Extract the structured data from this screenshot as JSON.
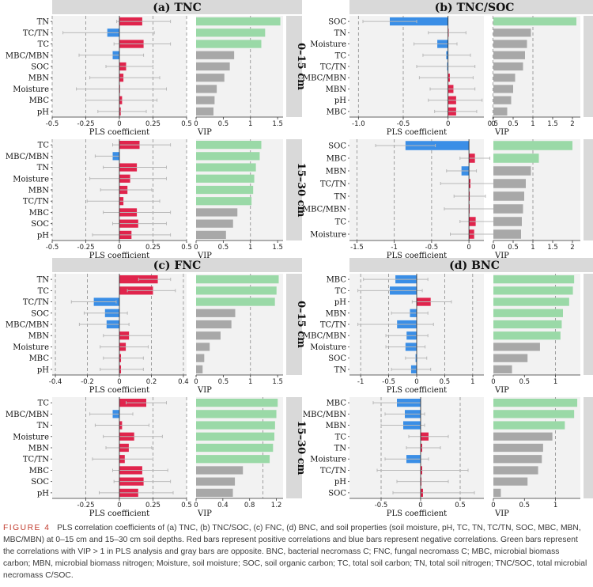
{
  "colors": {
    "positive": "#e0244c",
    "negative": "#3a8ee6",
    "vip_high": "#9ad9a7",
    "vip_low": "#a8a8a8",
    "strip": "#d9d9d9",
    "panel_bg": "#f2f2f2",
    "errorbar": "#b8b8b8"
  },
  "caption": {
    "label": "FIGURE 4",
    "text": "PLS correlation coefficients of (a) TNC, (b) TNC/SOC, (c) FNC, (d) BNC, and soil properties (soil moisture, pH, TC, TN, TC/TN, SOC, MBC, MBN, MBC/MBN) at 0–15 cm and 15–30 cm soil depths. Red bars represent positive correlations and blue bars represent negative correlations. Green bars represent the correlations with VIP > 1 in PLS analysis and gray bars are opposite. BNC, bacterial necromass C; FNC, fungal necromass C; MBC, microbial biomass carbon; MBN, microbial biomass nitrogen; Moisture, soil moisture; SOC, soil organic carbon; TC, total soil carbon; TN, total soil nitrogen; TNC/SOC, total microbial necromass C/SOC."
  },
  "chart_data": [
    {
      "type": "bar",
      "title": "(a) TNC",
      "xlabel": "PLS coefficient",
      "vip_xlabel": "VIP",
      "coef_xlim": [
        -0.5,
        0.5
      ],
      "coef_ticks": [
        -0.5,
        -0.25,
        0,
        0.25,
        0.5
      ],
      "coef_tick_labels": [
        "-0.5",
        "-0.25",
        "0",
        "0.25",
        "0.5"
      ],
      "vip_xlim": [
        0,
        1.6
      ],
      "vip_ticks": [
        0,
        0.5,
        1,
        1.5
      ],
      "vip_tick_labels": [
        "0",
        "0.5",
        "1",
        "1.5"
      ],
      "depths": [
        {
          "label": "0–15 cm",
          "rows": [
            {
              "name": "TN",
              "coef": 0.17,
              "lo": -0.02,
              "hi": 0.38,
              "vip": 1.55
            },
            {
              "name": "TC/TN",
              "coef": -0.09,
              "lo": -0.42,
              "hi": 0.26,
              "vip": 1.27
            },
            {
              "name": "TC",
              "coef": 0.18,
              "lo": -0.04,
              "hi": 0.38,
              "vip": 1.2
            },
            {
              "name": "MBC/MBN",
              "coef": -0.05,
              "lo": -0.3,
              "hi": 0.18,
              "vip": 0.7
            },
            {
              "name": "SOC",
              "coef": 0.05,
              "lo": -0.1,
              "hi": 0.25,
              "vip": 0.62
            },
            {
              "name": "MBN",
              "coef": 0.03,
              "lo": -0.22,
              "hi": 0.3,
              "vip": 0.52
            },
            {
              "name": "Moisture",
              "coef": 0.0,
              "lo": -0.32,
              "hi": 0.35,
              "vip": 0.38
            },
            {
              "name": "MBC",
              "coef": 0.02,
              "lo": -0.25,
              "hi": 0.28,
              "vip": 0.34
            },
            {
              "name": "pH",
              "coef": 0.01,
              "lo": -0.16,
              "hi": 0.2,
              "vip": 0.32
            }
          ]
        },
        {
          "label": "15–30 cm",
          "rows": [
            {
              "name": "TC",
              "coef": 0.15,
              "lo": -0.05,
              "hi": 0.38,
              "vip": 1.2
            },
            {
              "name": "MBC/MBN",
              "coef": -0.05,
              "lo": -0.18,
              "hi": 0.0,
              "vip": 1.17
            },
            {
              "name": "TN",
              "coef": 0.13,
              "lo": -0.12,
              "hi": 0.35,
              "vip": 1.1
            },
            {
              "name": "Moisture",
              "coef": 0.08,
              "lo": -0.22,
              "hi": 0.35,
              "vip": 1.07
            },
            {
              "name": "MBN",
              "coef": 0.06,
              "lo": -0.14,
              "hi": 0.24,
              "vip": 1.05
            },
            {
              "name": "TC/TN",
              "coef": 0.03,
              "lo": -0.24,
              "hi": 0.3,
              "vip": 1.02
            },
            {
              "name": "MBC",
              "coef": 0.13,
              "lo": -0.12,
              "hi": 0.38,
              "vip": 0.76
            },
            {
              "name": "SOC",
              "coef": 0.14,
              "lo": -0.05,
              "hi": 0.35,
              "vip": 0.68
            },
            {
              "name": "pH",
              "coef": 0.09,
              "lo": -0.2,
              "hi": 0.38,
              "vip": 0.55
            }
          ]
        }
      ]
    },
    {
      "type": "bar",
      "title": "(b) TNC/SOC",
      "xlabel": "PLS coefficient",
      "vip_xlabel": "VIP",
      "coef_xlim": [
        -1.1,
        0.4
      ],
      "coef_ticks": [
        -1.0,
        -0.5,
        0,
        0.5
      ],
      "coef_tick_labels": [
        "-1.0",
        "-0.5",
        "0",
        "0.5"
      ],
      "coef_xlim_2": [
        -1.6,
        0.2
      ],
      "coef_ticks_2": [
        -1.5,
        -1,
        -0.5,
        0
      ],
      "coef_tick_labels_2": [
        "-1.5",
        "-1",
        "-0.5",
        "0"
      ],
      "vip_xlim": [
        0,
        2.2
      ],
      "vip_ticks": [
        0,
        0.5,
        1,
        1.5,
        2
      ],
      "vip_tick_labels": [
        "0",
        "0.5",
        "1",
        "1.5",
        "2"
      ],
      "depths": [
        {
          "label": "0–15 cm",
          "rows": [
            {
              "name": "SOC",
              "coef": -0.65,
              "lo": -0.95,
              "hi": -0.35,
              "vip": 2.1
            },
            {
              "name": "TN",
              "coef": 0.0,
              "lo": -0.22,
              "hi": 0.2,
              "vip": 0.95
            },
            {
              "name": "Moisture",
              "coef": -0.12,
              "lo": -0.38,
              "hi": 0.1,
              "vip": 0.85
            },
            {
              "name": "TC",
              "coef": -0.02,
              "lo": -0.28,
              "hi": 0.25,
              "vip": 0.8
            },
            {
              "name": "TC/TN",
              "coef": -0.01,
              "lo": -0.35,
              "hi": 0.3,
              "vip": 0.75
            },
            {
              "name": "MBC/MBN",
              "coef": 0.02,
              "lo": -0.32,
              "hi": 0.28,
              "vip": 0.55
            },
            {
              "name": "MBN",
              "coef": 0.06,
              "lo": -0.2,
              "hi": 0.3,
              "vip": 0.5
            },
            {
              "name": "pH",
              "coef": 0.09,
              "lo": -0.22,
              "hi": 0.38,
              "vip": 0.45
            },
            {
              "name": "MBC",
              "coef": 0.09,
              "lo": -0.15,
              "hi": 0.32,
              "vip": 0.35
            }
          ]
        },
        {
          "label": "15–30 cm",
          "rows": [
            {
              "name": "SOC",
              "coef": -0.85,
              "lo": -1.25,
              "hi": -0.45,
              "vip": 2.0
            },
            {
              "name": "MBC",
              "coef": 0.08,
              "lo": -0.12,
              "hi": 0.28,
              "vip": 1.15
            },
            {
              "name": "MBN",
              "coef": -0.1,
              "lo": -0.3,
              "hi": 0.1,
              "vip": 0.95
            },
            {
              "name": "TC/TN",
              "coef": 0.02,
              "lo": -0.38,
              "hi": 0.4,
              "vip": 0.82
            },
            {
              "name": "TN",
              "coef": 0.01,
              "lo": -0.2,
              "hi": 0.22,
              "vip": 0.78
            },
            {
              "name": "MBC/MBN",
              "coef": 0.0,
              "lo": -0.33,
              "hi": 0.38,
              "vip": 0.75
            },
            {
              "name": "TC",
              "coef": 0.09,
              "lo": -0.12,
              "hi": 0.35,
              "vip": 0.72
            },
            {
              "name": "Moisture",
              "coef": 0.07,
              "lo": -0.25,
              "hi": 0.38,
              "vip": 0.7
            }
          ]
        }
      ]
    },
    {
      "type": "bar",
      "title": "(c) FNC",
      "xlabel": "PLS coefficient",
      "vip_xlabel": "VIP",
      "coef_xlim": [
        -0.42,
        0.42
      ],
      "coef_ticks": [
        -0.4,
        -0.2,
        0,
        0.2,
        0.4
      ],
      "coef_tick_labels": [
        "-0.4",
        "-0.2",
        "0",
        "0.2",
        "0.4"
      ],
      "coef_xlim_2": [
        -0.5,
        0.5
      ],
      "coef_ticks_2": [
        -0.25,
        0,
        0.25,
        0.5
      ],
      "coef_tick_labels_2": [
        "-0.25",
        "0",
        "0.25",
        "0.5"
      ],
      "vip_xlim": [
        0,
        1.6
      ],
      "vip_ticks": [
        0,
        0.5,
        1,
        1.5
      ],
      "vip_tick_labels": [
        "0",
        "0.5",
        "1",
        "1.5"
      ],
      "vip_xlim_2": [
        0,
        1.3
      ],
      "vip_ticks_2": [
        0,
        0.4,
        0.8,
        1.2
      ],
      "vip_tick_labels_2": [
        "0",
        "0.4",
        "0.8",
        "1.2"
      ],
      "depths": [
        {
          "label": "0–15 cm",
          "rows": [
            {
              "name": "TN",
              "coef": 0.24,
              "lo": 0.12,
              "hi": 0.32,
              "vip": 1.52
            },
            {
              "name": "TC",
              "coef": 0.21,
              "lo": 0.05,
              "hi": 0.35,
              "vip": 1.48
            },
            {
              "name": "TC/TN",
              "coef": -0.16,
              "lo": -0.3,
              "hi": -0.02,
              "vip": 1.45
            },
            {
              "name": "SOC",
              "coef": -0.09,
              "lo": -0.22,
              "hi": 0.05,
              "vip": 0.72
            },
            {
              "name": "MBC/MBN",
              "coef": -0.08,
              "lo": -0.25,
              "hi": 0.06,
              "vip": 0.65
            },
            {
              "name": "MBN",
              "coef": 0.06,
              "lo": -0.1,
              "hi": 0.2,
              "vip": 0.45
            },
            {
              "name": "Moisture",
              "coef": 0.04,
              "lo": -0.12,
              "hi": 0.18,
              "vip": 0.25
            },
            {
              "name": "MBC",
              "coef": 0.01,
              "lo": -0.1,
              "hi": 0.15,
              "vip": 0.15
            },
            {
              "name": "pH",
              "coef": 0.01,
              "lo": -0.12,
              "hi": 0.15,
              "vip": 0.12
            }
          ]
        },
        {
          "label": "15–30 cm",
          "rows": [
            {
              "name": "TC",
              "coef": 0.2,
              "lo": 0.05,
              "hi": 0.35,
              "vip": 1.22
            },
            {
              "name": "MBC/MBN",
              "coef": -0.05,
              "lo": -0.22,
              "hi": 0.1,
              "vip": 1.2
            },
            {
              "name": "TN",
              "coef": 0.02,
              "lo": -0.18,
              "hi": 0.22,
              "vip": 1.18
            },
            {
              "name": "Moisture",
              "coef": 0.11,
              "lo": -0.12,
              "hi": 0.32,
              "vip": 1.17
            },
            {
              "name": "MBN",
              "coef": 0.07,
              "lo": -0.1,
              "hi": 0.24,
              "vip": 1.15
            },
            {
              "name": "TC/TN",
              "coef": 0.04,
              "lo": -0.2,
              "hi": 0.25,
              "vip": 1.1
            },
            {
              "name": "MBC",
              "coef": 0.17,
              "lo": -0.05,
              "hi": 0.36,
              "vip": 0.7
            },
            {
              "name": "SOC",
              "coef": 0.18,
              "lo": -0.04,
              "hi": 0.38,
              "vip": 0.58
            },
            {
              "name": "pH",
              "coef": 0.14,
              "lo": -0.15,
              "hi": 0.4,
              "vip": 0.55
            }
          ]
        }
      ]
    },
    {
      "type": "bar",
      "title": "(d) BNC",
      "xlabel": "PLS coefficient",
      "vip_xlabel": "VIP",
      "coef_xlim": [
        -1.2,
        1.2
      ],
      "coef_ticks": [
        -1,
        -0.5,
        0,
        0.5,
        1
      ],
      "coef_tick_labels": [
        "-1",
        "-0.5",
        "0",
        "0.5",
        "1"
      ],
      "coef_xlim_2": [
        -0.9,
        0.8
      ],
      "coef_ticks_2": [
        -0.5,
        0,
        0.5
      ],
      "coef_tick_labels_2": [
        "-0.5",
        "0",
        "0.5"
      ],
      "vip_xlim": [
        0,
        1.4
      ],
      "vip_ticks": [
        0,
        0.5,
        1
      ],
      "vip_tick_labels": [
        "0",
        "0.5",
        "1"
      ],
      "depths": [
        {
          "label": "0–15 cm",
          "rows": [
            {
              "name": "MBC",
              "coef": -0.38,
              "lo": -0.95,
              "hi": 0.2,
              "vip": 1.3
            },
            {
              "name": "TC",
              "coef": -0.48,
              "lo": -1.05,
              "hi": 0.1,
              "vip": 1.28
            },
            {
              "name": "pH",
              "coef": 0.25,
              "lo": -0.08,
              "hi": 0.62,
              "vip": 1.22
            },
            {
              "name": "MBN",
              "coef": -0.12,
              "lo": -0.45,
              "hi": 0.2,
              "vip": 1.12
            },
            {
              "name": "TC/TN",
              "coef": -0.35,
              "lo": -1.05,
              "hi": 0.3,
              "vip": 1.1
            },
            {
              "name": "MBC/MBN",
              "coef": -0.18,
              "lo": -0.55,
              "hi": 0.2,
              "vip": 1.08
            },
            {
              "name": "Moisture",
              "coef": -0.2,
              "lo": -0.55,
              "hi": 0.15,
              "vip": 0.75
            },
            {
              "name": "SOC",
              "coef": -0.02,
              "lo": -0.2,
              "hi": 0.18,
              "vip": 0.55
            },
            {
              "name": "TN",
              "coef": -0.1,
              "lo": -0.45,
              "hi": 0.25,
              "vip": 0.3
            }
          ]
        },
        {
          "label": "15–30 cm",
          "rows": [
            {
              "name": "MBC",
              "coef": -0.3,
              "lo": -0.6,
              "hi": 0.0,
              "vip": 1.35
            },
            {
              "name": "MBC/MBN",
              "coef": -0.2,
              "lo": -0.45,
              "hi": 0.05,
              "vip": 1.3
            },
            {
              "name": "MBN",
              "coef": -0.22,
              "lo": -0.5,
              "hi": 0.05,
              "vip": 1.15
            },
            {
              "name": "TC",
              "coef": 0.1,
              "lo": -0.15,
              "hi": 0.35,
              "vip": 0.95
            },
            {
              "name": "TN",
              "coef": 0.02,
              "lo": -0.18,
              "hi": 0.25,
              "vip": 0.8
            },
            {
              "name": "Moisture",
              "coef": -0.18,
              "lo": -0.45,
              "hi": 0.1,
              "vip": 0.78
            },
            {
              "name": "TC/TN",
              "coef": 0.02,
              "lo": -0.55,
              "hi": 0.6,
              "vip": 0.72
            },
            {
              "name": "pH",
              "coef": 0.01,
              "lo": -0.3,
              "hi": 0.35,
              "vip": 0.55
            },
            {
              "name": "SOC",
              "coef": 0.03,
              "lo": -0.35,
              "hi": 0.68,
              "vip": 0.12
            }
          ]
        }
      ]
    }
  ]
}
